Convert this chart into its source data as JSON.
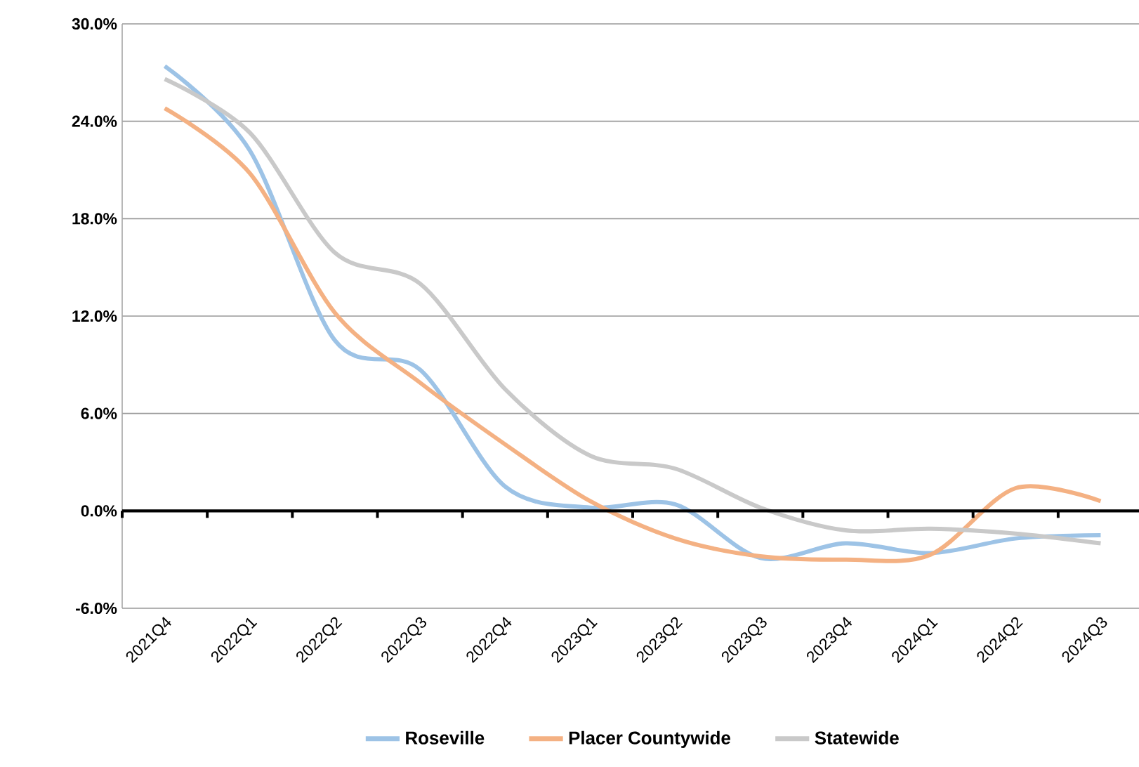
{
  "chart_data": {
    "type": "line",
    "categories": [
      "2021Q4",
      "2022Q1",
      "2022Q2",
      "2022Q3",
      "2022Q4",
      "2023Q1",
      "2023Q2",
      "2023Q3",
      "2023Q4",
      "2024Q1",
      "2024Q2",
      "2024Q3"
    ],
    "series": [
      {
        "name": "Roseville",
        "color": "#9dc3e6",
        "values": [
          27.4,
          22.2,
          10.5,
          8.7,
          1.5,
          0.2,
          0.4,
          -2.9,
          -2.0,
          -2.6,
          -1.7,
          -1.5
        ]
      },
      {
        "name": "Placer Countywide",
        "color": "#f4b183",
        "values": [
          24.8,
          20.8,
          12.2,
          7.9,
          4.1,
          0.6,
          -1.7,
          -2.8,
          -3.0,
          -2.7,
          1.4,
          0.6
        ]
      },
      {
        "name": "Statewide",
        "color": "#c9c9c9",
        "values": [
          26.6,
          23.3,
          15.9,
          14.0,
          7.5,
          3.4,
          2.6,
          0.2,
          -1.2,
          -1.1,
          -1.4,
          -2.0
        ]
      }
    ],
    "ylim": [
      -6,
      30
    ],
    "yticks": [
      {
        "value": -6,
        "label": "-6.0%"
      },
      {
        "value": 0,
        "label": "0.0%"
      },
      {
        "value": 6,
        "label": "6.0%"
      },
      {
        "value": 12,
        "label": "12.0%"
      },
      {
        "value": 18,
        "label": "18.0%"
      },
      {
        "value": 24,
        "label": "24.0%"
      },
      {
        "value": 30,
        "label": "30.0%"
      }
    ],
    "grid": "y",
    "legend": "bottom",
    "marker": "none",
    "line_style": "solid"
  }
}
